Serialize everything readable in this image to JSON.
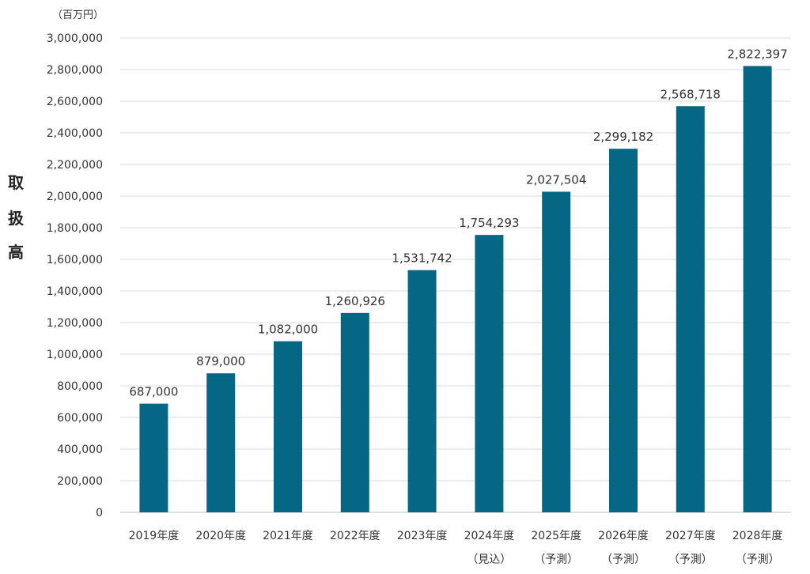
{
  "chart_data": {
    "type": "bar",
    "title": "",
    "unit_label": "（百万円）",
    "ylabel_chars": [
      "取",
      "扱",
      "高"
    ],
    "xlabel": "",
    "ylim": [
      0,
      3000000
    ],
    "ytick_step": 200000,
    "ytick_labels": [
      "0",
      "200,000",
      "400,000",
      "600,000",
      "800,000",
      "1,000,000",
      "1,200,000",
      "1,400,000",
      "1,600,000",
      "1,800,000",
      "2,000,000",
      "2,200,000",
      "2,400,000",
      "2,600,000",
      "2,800,000",
      "3,000,000"
    ],
    "categories": [
      {
        "year": "2019年度",
        "note": ""
      },
      {
        "year": "2020年度",
        "note": ""
      },
      {
        "year": "2021年度",
        "note": ""
      },
      {
        "year": "2022年度",
        "note": ""
      },
      {
        "year": "2023年度",
        "note": ""
      },
      {
        "year": "2024年度",
        "note": "（見込）"
      },
      {
        "year": "2025年度",
        "note": "（予測）"
      },
      {
        "year": "2026年度",
        "note": "（予測）"
      },
      {
        "year": "2027年度",
        "note": "（予測）"
      },
      {
        "year": "2028年度",
        "note": "（予測）"
      }
    ],
    "values": [
      687000,
      879000,
      1082000,
      1260926,
      1531742,
      1754293,
      2027504,
      2299182,
      2568718,
      2822397
    ],
    "value_labels": [
      "687,000",
      "879,000",
      "1,082,000",
      "1,260,926",
      "1,531,742",
      "1,754,293",
      "2,027,504",
      "2,299,182",
      "2,568,718",
      "2,822,397"
    ],
    "bar_color": "#066785",
    "grid_color": "#d9d9d9",
    "text_color": "#333333"
  }
}
